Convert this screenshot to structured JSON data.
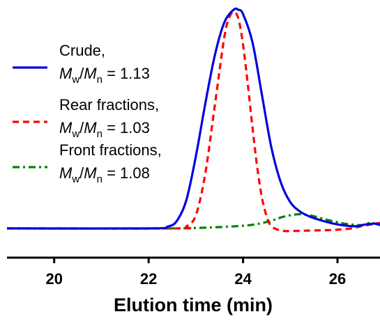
{
  "chart_data": {
    "type": "line",
    "xlabel": "Elution time (min)",
    "ylabel": "",
    "xlim": [
      19.0,
      26.9
    ],
    "ylim": [
      0.0,
      1.0
    ],
    "xticks": [
      20,
      22,
      24,
      26
    ],
    "grid": false,
    "legend_position": "left",
    "series": [
      {
        "name": "Crude,",
        "ratio_label": "1.13",
        "color": "#0000e0",
        "style": "solid",
        "x": [
          19.0,
          22.0,
          22.4,
          22.6,
          22.8,
          23.0,
          23.2,
          23.4,
          23.6,
          23.8,
          23.9,
          24.0,
          24.2,
          24.4,
          24.6,
          24.8,
          25.0,
          25.2,
          25.4,
          25.6,
          25.8,
          26.0,
          26.2,
          26.4,
          26.6,
          26.8,
          26.9
        ],
        "y": [
          0.0,
          0.0,
          0.008,
          0.035,
          0.13,
          0.33,
          0.57,
          0.79,
          0.94,
          1.0,
          1.0,
          0.98,
          0.85,
          0.61,
          0.37,
          0.21,
          0.12,
          0.078,
          0.055,
          0.04,
          0.028,
          0.018,
          0.012,
          0.01,
          0.018,
          0.022,
          0.015
        ]
      },
      {
        "name": "Rear fractions,",
        "ratio_label": "1.03",
        "color": "#ff0000",
        "style": "dashed",
        "x": [
          19.0,
          22.6,
          22.8,
          23.0,
          23.2,
          23.4,
          23.6,
          23.7,
          23.8,
          23.9,
          24.0,
          24.1,
          24.2,
          24.3,
          24.4,
          24.5,
          24.6,
          24.8,
          25.0,
          25.4,
          25.8,
          26.0,
          26.3,
          26.5,
          26.9
        ],
        "y": [
          0.0,
          0.0,
          0.01,
          0.06,
          0.25,
          0.56,
          0.87,
          0.96,
          0.99,
          0.96,
          0.84,
          0.66,
          0.46,
          0.28,
          0.14,
          0.055,
          0.01,
          -0.01,
          -0.012,
          -0.01,
          -0.008,
          -0.006,
          0.0,
          0.01,
          0.025
        ]
      },
      {
        "name": "Front fractions,",
        "ratio_label": "1.08",
        "color": "#008000",
        "style": "dash-dot",
        "x": [
          19.0,
          22.5,
          23.0,
          23.5,
          24.0,
          24.3,
          24.6,
          24.8,
          25.0,
          25.2,
          25.4,
          25.6,
          25.8,
          26.0,
          26.2,
          26.5,
          26.7,
          26.9
        ],
        "y": [
          0.0,
          0.0,
          0.002,
          0.006,
          0.012,
          0.02,
          0.035,
          0.05,
          0.06,
          0.065,
          0.06,
          0.05,
          0.038,
          0.028,
          0.02,
          0.015,
          0.025,
          0.015
        ]
      }
    ]
  },
  "legend": {
    "ratio_prefix": "= "
  }
}
